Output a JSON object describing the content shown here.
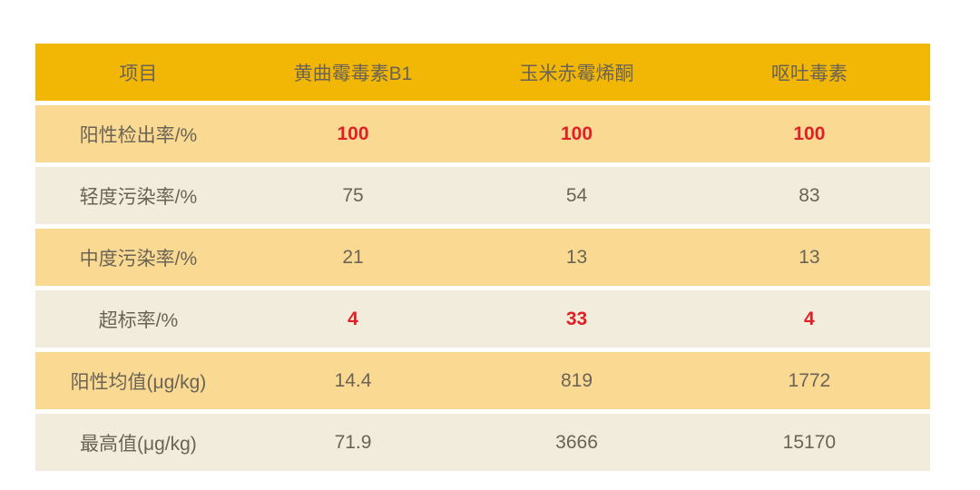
{
  "theme": {
    "header_bg": "#F2B705",
    "row_tan_bg": "#FAD993",
    "row_cream_bg": "#F2ECDC",
    "text_color": "#6B6456",
    "emphasis_text_color": "#DF2127",
    "page_bg": "#FFFFFF"
  },
  "chart_data": {
    "type": "table",
    "title": "",
    "columns": [
      "项目",
      "黄曲霉毒素B1",
      "玉米赤霉烯酮",
      "呕吐毒素"
    ],
    "rows": [
      {
        "label": "阳性检出率/%",
        "values": [
          "100",
          "100",
          "100"
        ],
        "emphasis": true
      },
      {
        "label": "轻度污染率/%",
        "values": [
          "75",
          "54",
          "83"
        ],
        "emphasis": false
      },
      {
        "label": "中度污染率/%",
        "values": [
          "21",
          "13",
          "13"
        ],
        "emphasis": false
      },
      {
        "label": "超标率/%",
        "values": [
          "4",
          "33",
          "4"
        ],
        "emphasis": true
      },
      {
        "label": "阳性均值(μg/kg)",
        "values": [
          "14.4",
          "819",
          "1772"
        ],
        "emphasis": false
      },
      {
        "label": "最高值(μg/kg)",
        "values": [
          "71.9",
          "3666",
          "15170"
        ],
        "emphasis": false
      }
    ],
    "layout_hints": {
      "header_row_highlighted": true,
      "body_rows_alternate": [
        "tan",
        "cream"
      ],
      "emphasized_values_color": "red-bold",
      "grid": "horizontal-bands-no-vertical-lines"
    }
  }
}
